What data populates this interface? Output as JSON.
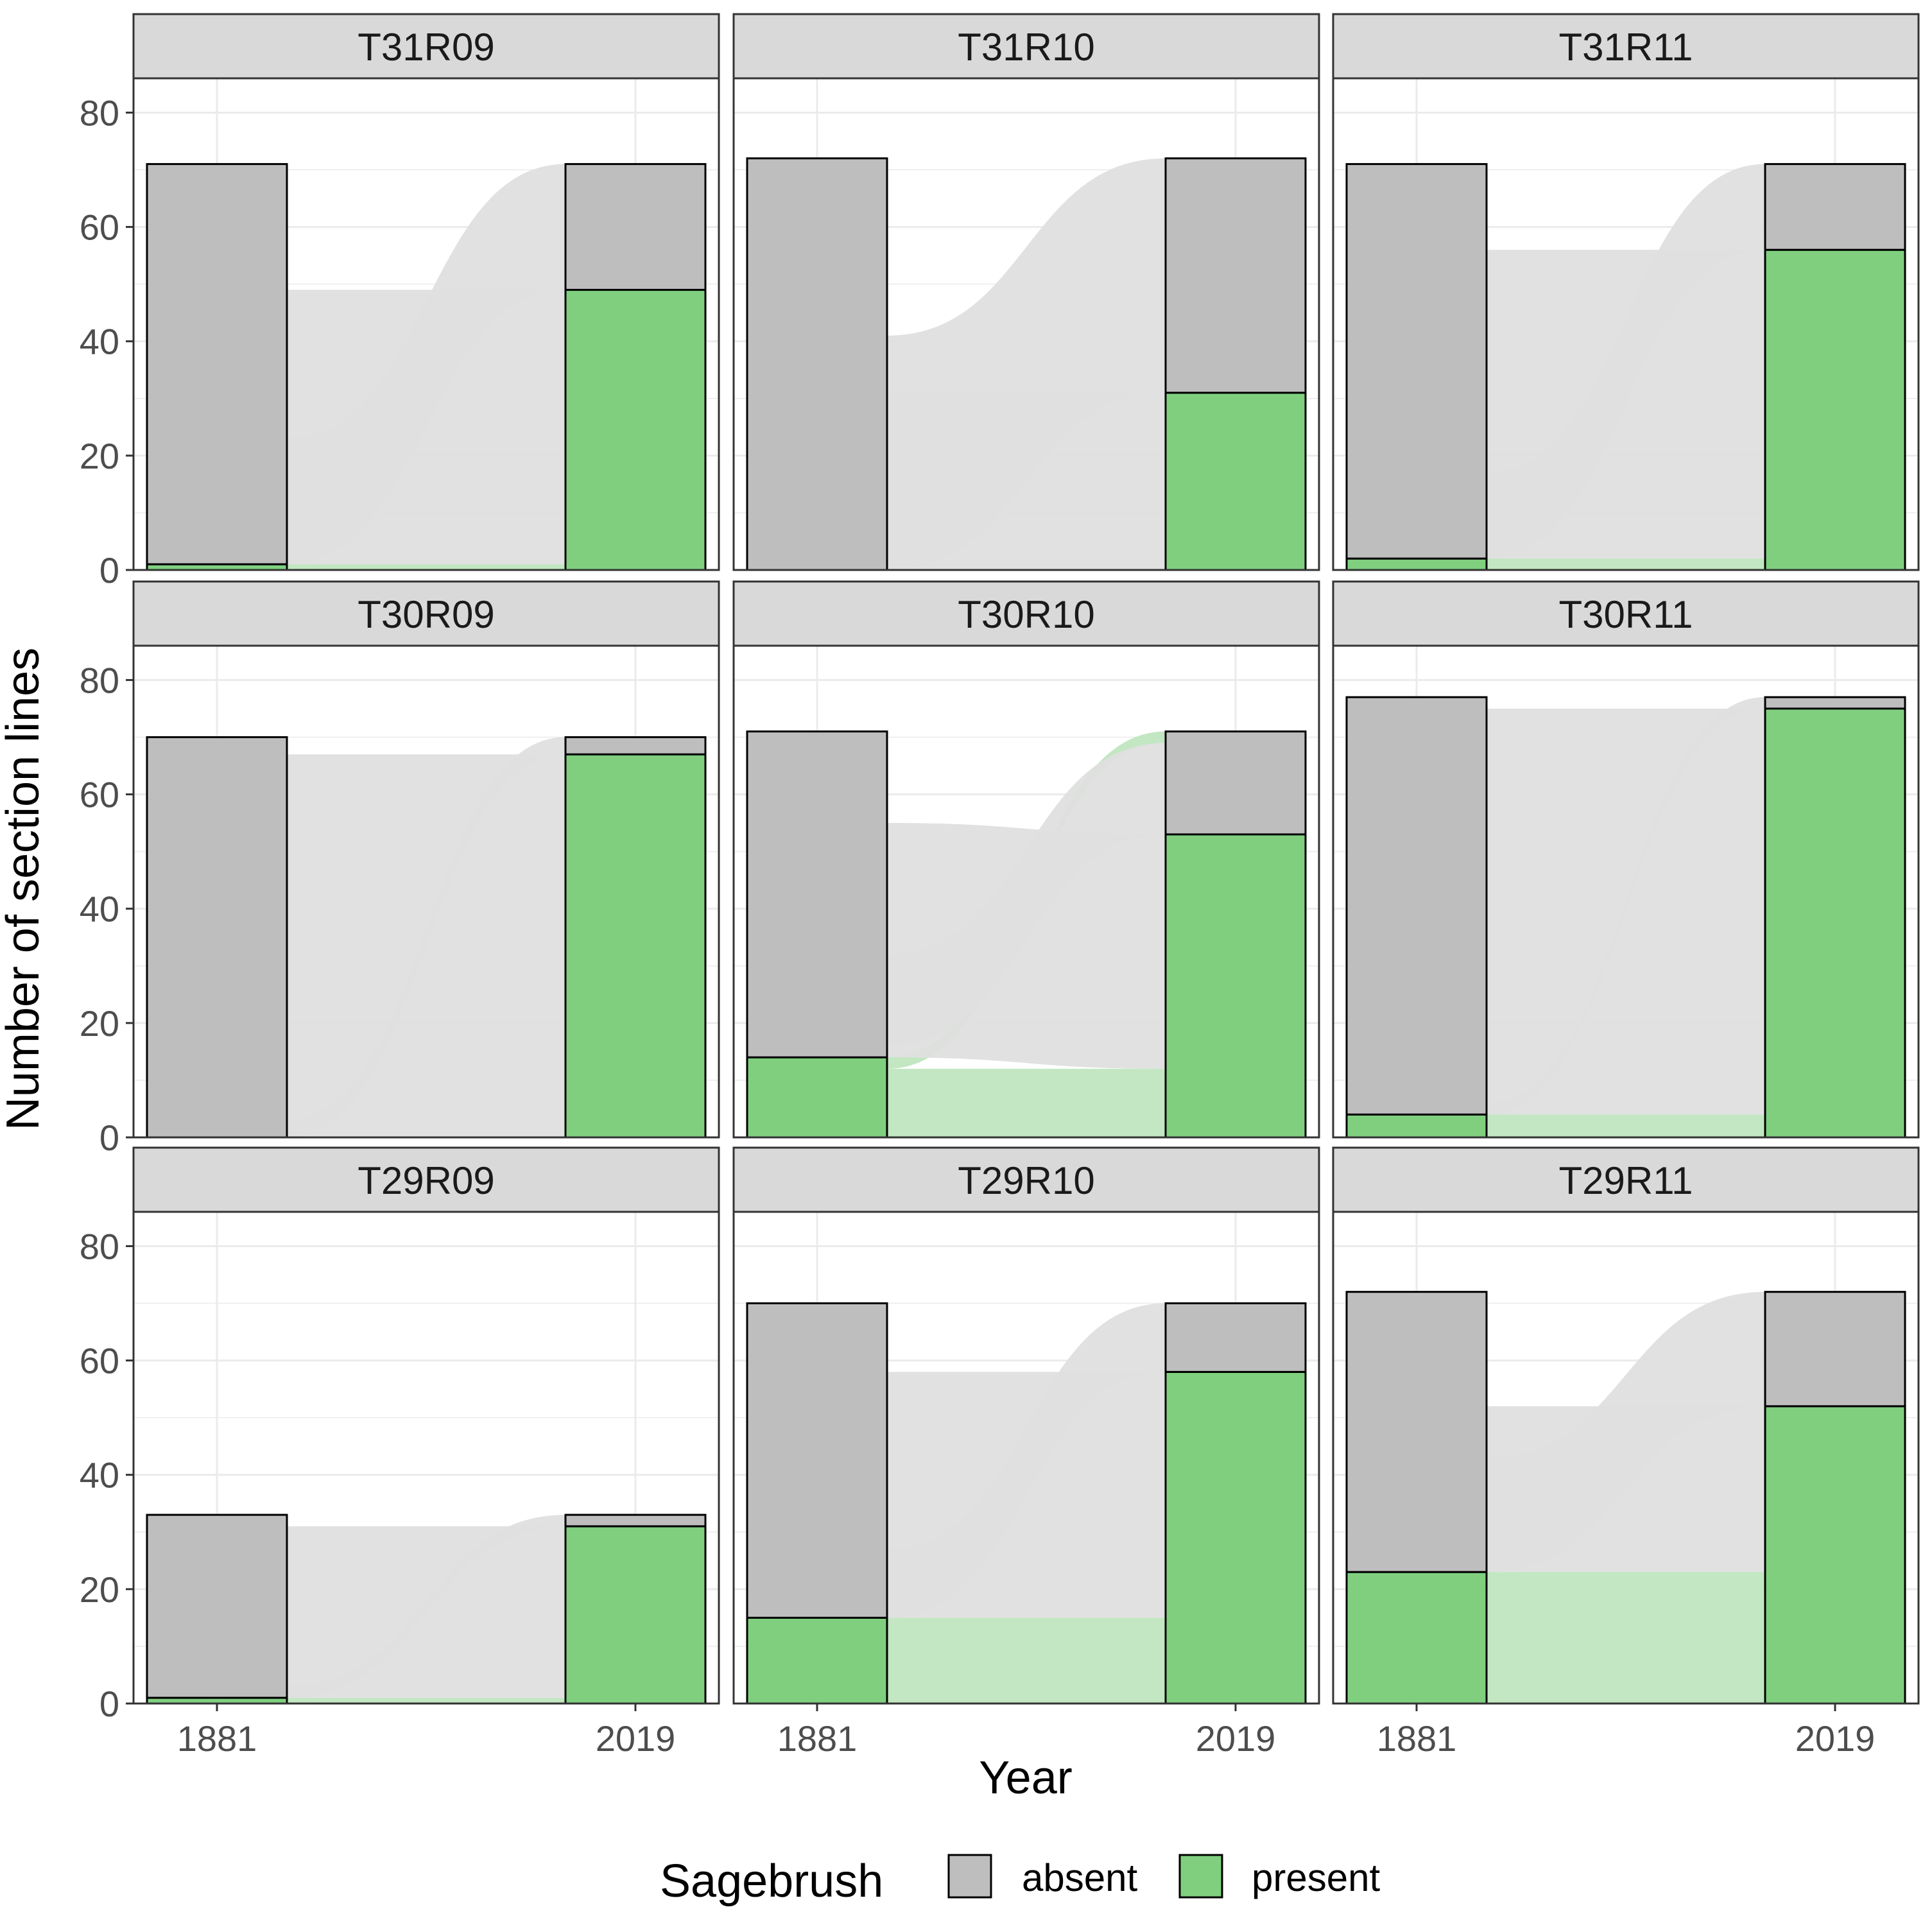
{
  "colors": {
    "absent": "#BEBEBE",
    "present": "#7FCF7F",
    "strip": "#D9D9D9",
    "flow_absent": "#DFDFDF",
    "flow_present": "#BFE6BF",
    "grid": "#EBEBEB",
    "border": "#333333",
    "tick_text": "#4D4D4D"
  },
  "chart_data": {
    "type": "bar",
    "subtype": "faceted stacked bar with alluvial flows",
    "xlabel": "Year",
    "ylabel": "Number of section lines",
    "categories": [
      "1881",
      "2019"
    ],
    "y_ticks": [
      0,
      20,
      40,
      60,
      80
    ],
    "ylim": [
      0,
      86
    ],
    "grid": true,
    "legend": {
      "title": "Sagebrush",
      "position": "bottom",
      "items": [
        {
          "key": "absent",
          "label": "absent"
        },
        {
          "key": "present",
          "label": "present"
        }
      ]
    },
    "panels": [
      {
        "label": "T31R09",
        "present": [
          1,
          49
        ],
        "absent": [
          70,
          22
        ],
        "flows": {
          "present_present": 1,
          "present_absent": 0,
          "absent_present": 48,
          "absent_absent": 22
        }
      },
      {
        "label": "T31R10",
        "present": [
          0,
          31
        ],
        "absent": [
          72,
          41
        ],
        "flows": {
          "present_present": 0,
          "present_absent": 0,
          "absent_present": 31,
          "absent_absent": 41
        }
      },
      {
        "label": "T31R11",
        "present": [
          2,
          56
        ],
        "absent": [
          69,
          15
        ],
        "flows": {
          "present_present": 2,
          "present_absent": 0,
          "absent_present": 54,
          "absent_absent": 15
        }
      },
      {
        "label": "T30R09",
        "present": [
          0,
          67
        ],
        "absent": [
          70,
          3
        ],
        "flows": {
          "present_present": 0,
          "present_absent": 0,
          "absent_present": 67,
          "absent_absent": 3
        }
      },
      {
        "label": "T30R10",
        "present": [
          14,
          53
        ],
        "absent": [
          57,
          18
        ],
        "flows": {
          "present_present": 12,
          "present_absent": 2,
          "absent_present": 41,
          "absent_absent": 16
        }
      },
      {
        "label": "T30R11",
        "present": [
          4,
          75
        ],
        "absent": [
          73,
          2
        ],
        "flows": {
          "present_present": 4,
          "present_absent": 0,
          "absent_present": 71,
          "absent_absent": 2
        }
      },
      {
        "label": "T29R09",
        "present": [
          1,
          31
        ],
        "absent": [
          32,
          2
        ],
        "flows": {
          "present_present": 1,
          "present_absent": 0,
          "absent_present": 30,
          "absent_absent": 2
        }
      },
      {
        "label": "T29R10",
        "present": [
          15,
          58
        ],
        "absent": [
          55,
          12
        ],
        "flows": {
          "present_present": 15,
          "present_absent": 0,
          "absent_present": 43,
          "absent_absent": 12
        }
      },
      {
        "label": "T29R11",
        "present": [
          23,
          52
        ],
        "absent": [
          49,
          20
        ],
        "flows": {
          "present_present": 23,
          "present_absent": 0,
          "absent_present": 29,
          "absent_absent": 20
        }
      }
    ]
  }
}
